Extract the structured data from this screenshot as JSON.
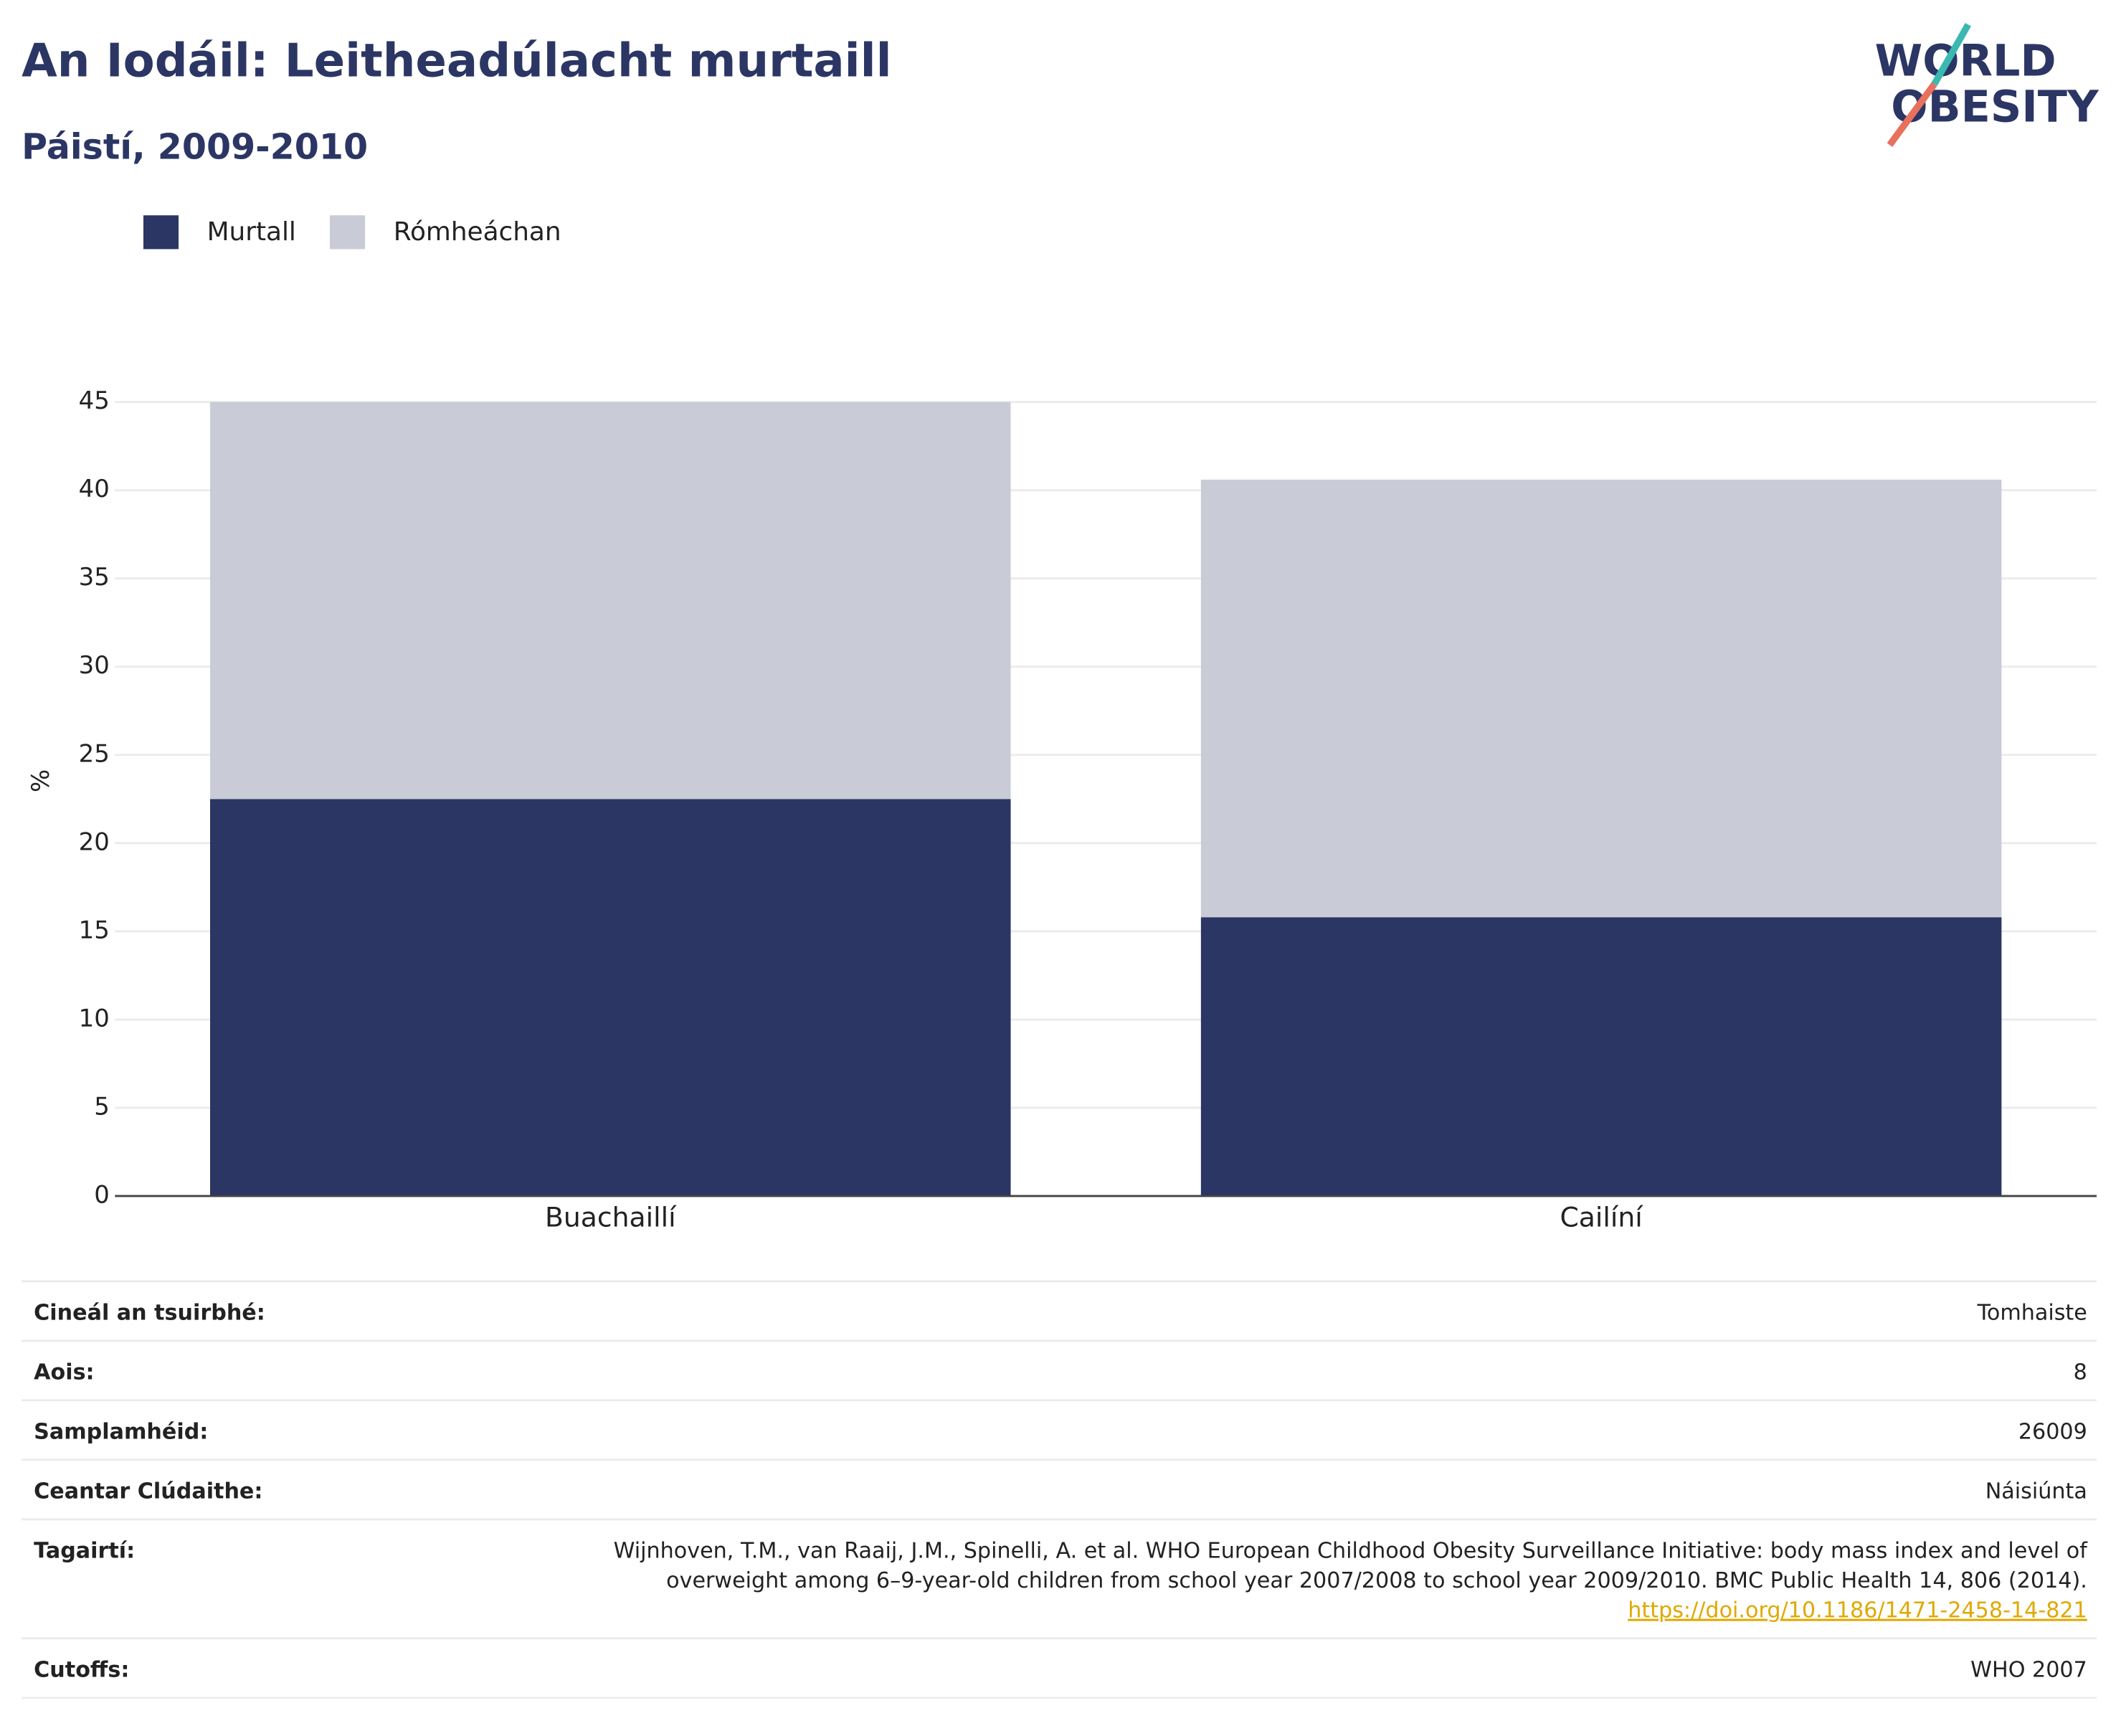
{
  "chart_data": {
    "type": "stacked-bar",
    "title": "An Iodáil: Leitheadúlacht murtaill",
    "subtitle": "Páistí, 2009-2010",
    "logo": [
      "WORLD",
      "OBESITY"
    ],
    "y_label": "%",
    "categories": [
      "Buachaillí",
      "Cailíní"
    ],
    "series": [
      {
        "name": "Murtall",
        "color": "#2b3664",
        "values": [
          22.5,
          15.8
        ]
      },
      {
        "name": "Rómheáchan",
        "color": "#c9ccd7",
        "values": [
          22.5,
          24.8
        ]
      }
    ],
    "ylim": [
      0,
      45
    ],
    "yticks": [
      0,
      5,
      10,
      15,
      20,
      25,
      30,
      35,
      40,
      45
    ],
    "grid": true,
    "legend": "top-left"
  },
  "table": {
    "rows": [
      [
        "Cineál an tsuirbhé:",
        "Tomhaiste"
      ],
      [
        "Aois:",
        "8"
      ],
      [
        "Samplamhéid:",
        "26009"
      ],
      [
        "Ceantar Clúdaithe:",
        "Náisiúnta"
      ],
      [
        "Tagairtí:",
        "Wijnhoven, T.M., van Raaij, J.M., Spinelli, A. et al. WHO European Childhood Obesity Surveillance Initiative: body mass index and level of",
        "overweight among 6–9-year-old children from school year 2007/2008 to school year 2009/2010. BMC Public Health 14, 806 (2014).",
        "https://doi.org/10.1186/1471-2458-14-821"
      ],
      [
        "Cutoffs:",
        "WHO 2007"
      ]
    ]
  }
}
